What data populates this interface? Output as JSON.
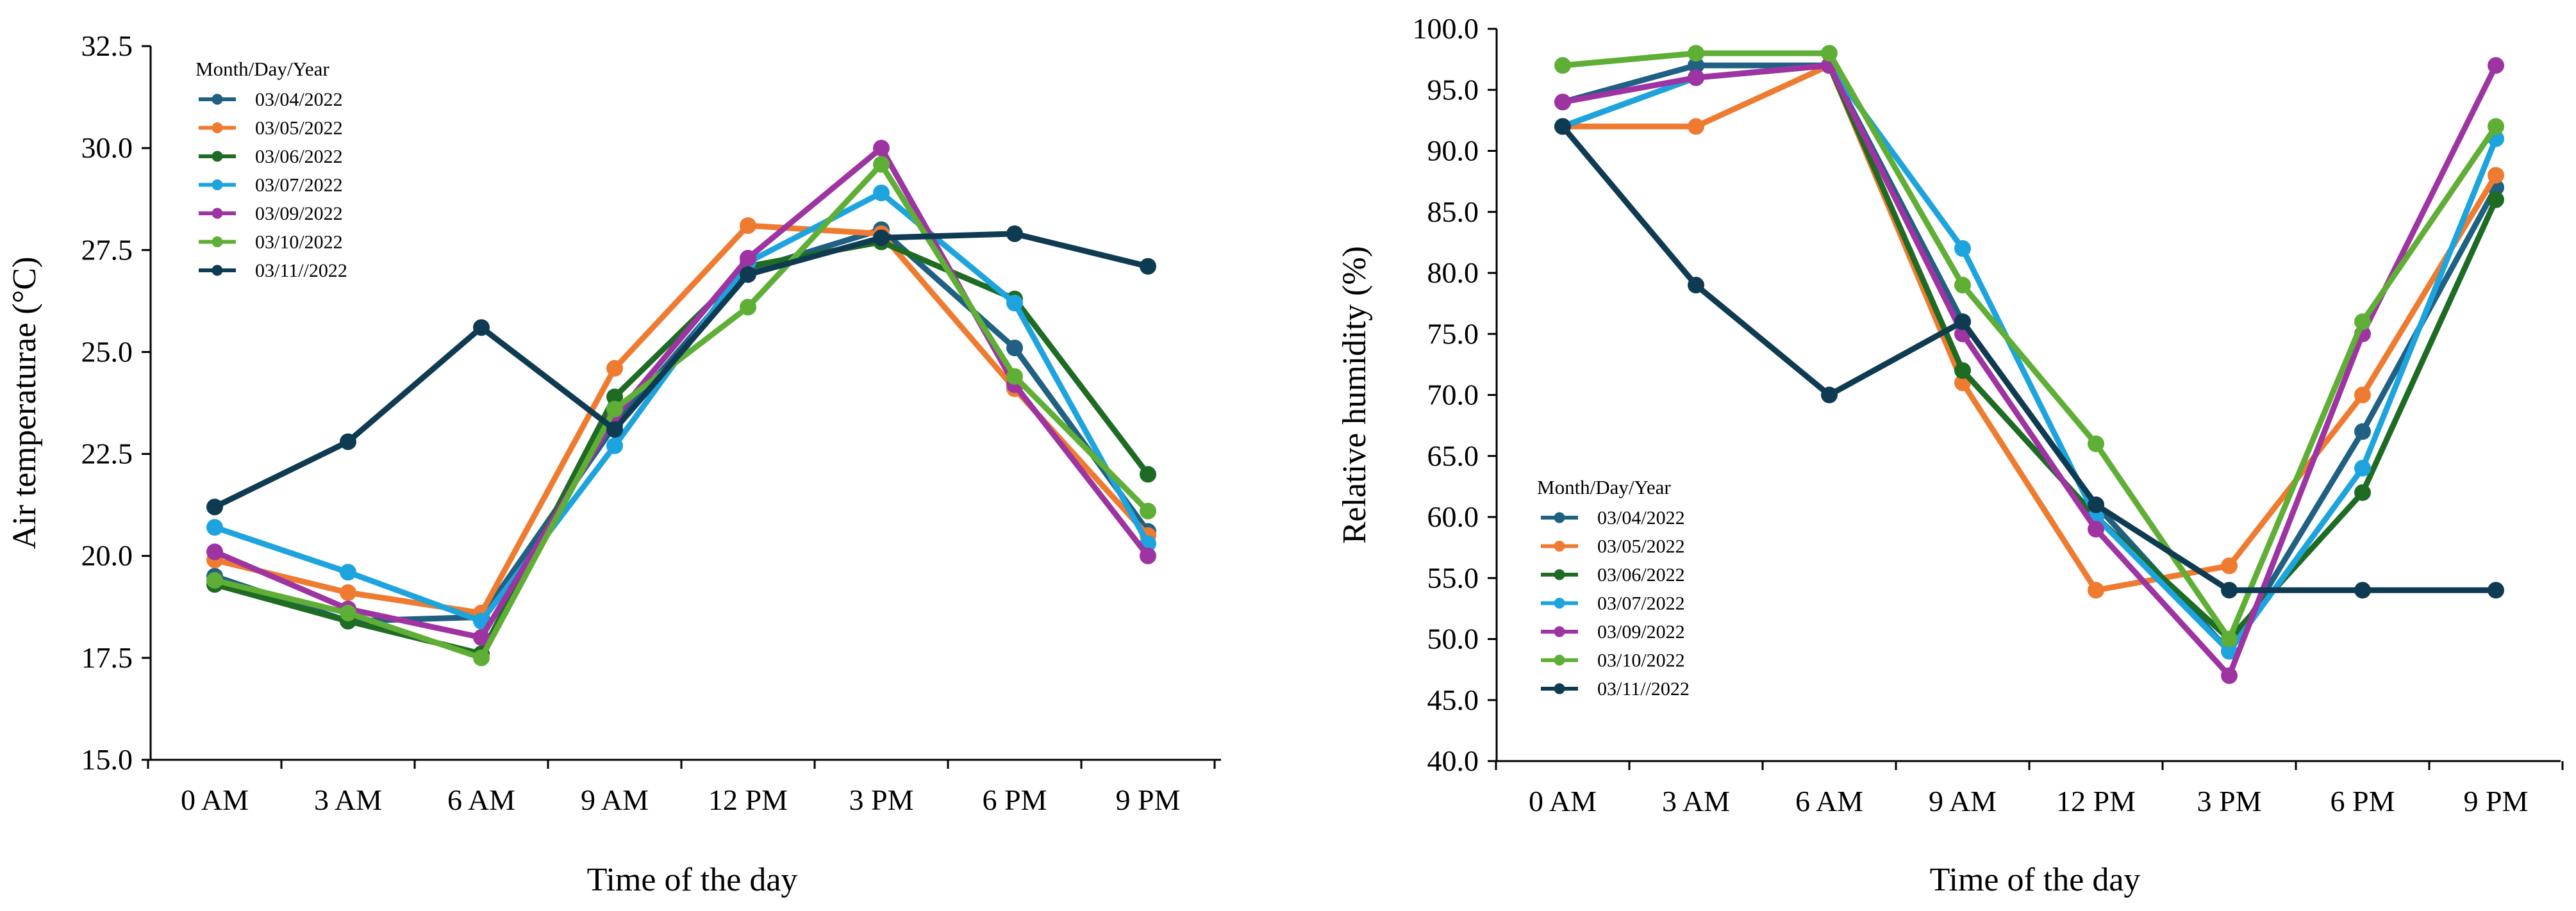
{
  "chart_data": [
    {
      "type": "line",
      "title": "",
      "xlabel": "Time of the day",
      "ylabel": "Air temperaturae (°C)",
      "categories": [
        "0 AM",
        "3 AM",
        "6 AM",
        "9 AM",
        "12 PM",
        "3 PM",
        "6 PM",
        "9 PM"
      ],
      "ylim": [
        15.0,
        32.5
      ],
      "yticks": [
        "15.0",
        "17.5",
        "20.0",
        "22.5",
        "25.0",
        "27.5",
        "30.0",
        "32.5"
      ],
      "grid": false,
      "legend": {
        "title": "Month/Day/Year",
        "position": "top-left",
        "labels": [
          " 03/04/2022",
          "03/05/2022",
          "03/06/2022",
          " 03/07/2022",
          "03/09/2022",
          "03/10/2022",
          "03/11//2022"
        ]
      },
      "series": [
        {
          "name": "03/04/2022",
          "color": "#1f6083",
          "values": [
            19.5,
            18.4,
            18.5,
            23.2,
            27.0,
            28.0,
            25.1,
            20.6
          ]
        },
        {
          "name": "03/05/2022",
          "color": "#ee7b30",
          "values": [
            19.9,
            19.1,
            18.6,
            24.6,
            28.1,
            27.9,
            24.1,
            20.5
          ]
        },
        {
          "name": "03/06/2022",
          "color": "#1e6b24",
          "values": [
            19.3,
            18.4,
            17.6,
            23.9,
            27.1,
            27.7,
            26.3,
            22.0
          ]
        },
        {
          "name": "03/07/2022",
          "color": "#1da4de",
          "values": [
            20.7,
            19.6,
            18.4,
            22.7,
            27.2,
            28.9,
            26.2,
            20.3
          ]
        },
        {
          "name": "03/09/2022",
          "color": "#9e34a2",
          "values": [
            20.1,
            18.7,
            18.0,
            23.4,
            27.3,
            30.0,
            24.2,
            20.0
          ]
        },
        {
          "name": "03/10/2022",
          "color": "#5fae35",
          "values": [
            19.4,
            18.6,
            17.5,
            23.6,
            26.1,
            29.6,
            24.4,
            21.1
          ]
        },
        {
          "name": "03/11//2022",
          "color": "#0f3b52",
          "values": [
            21.2,
            22.8,
            25.6,
            23.1,
            26.9,
            27.8,
            27.9,
            27.1
          ]
        }
      ]
    },
    {
      "type": "line",
      "title": "",
      "xlabel": "Time of the day",
      "ylabel": "Relative humidity (%)",
      "categories": [
        "0 AM",
        "3 AM",
        "6 AM",
        "9 AM",
        "12 PM",
        "3 PM",
        "6 PM",
        "9 PM"
      ],
      "ylim": [
        40.0,
        100.0
      ],
      "yticks": [
        "40.0",
        "45.0",
        "50.0",
        "55.0",
        "60.0",
        "65.0",
        "70.0",
        "75.0",
        "80.0",
        "85.0",
        "90.0",
        "95.0",
        "100.0"
      ],
      "grid": false,
      "legend": {
        "title": "Month/Day/Year",
        "position": "bottom-left",
        "labels": [
          " 03/04/2022",
          "03/05/2022",
          "03/06/2022",
          " 03/07/2022",
          "03/09/2022",
          "03/10/2022",
          "03/11//2022"
        ]
      },
      "series": [
        {
          "name": "03/04/2022",
          "color": "#1f6083",
          "values": [
            94,
            97,
            97,
            76,
            61,
            49,
            67,
            87
          ]
        },
        {
          "name": "03/05/2022",
          "color": "#ee7b30",
          "values": [
            92,
            92,
            97,
            71,
            54,
            56,
            70,
            88
          ]
        },
        {
          "name": "03/06/2022",
          "color": "#1e6b24",
          "values": [
            92,
            96,
            97,
            72,
            60,
            50,
            62,
            86
          ]
        },
        {
          "name": "03/07/2022",
          "color": "#1da4de",
          "values": [
            92,
            96,
            97,
            82,
            60,
            49,
            64,
            91
          ]
        },
        {
          "name": "03/09/2022",
          "color": "#9e34a2",
          "values": [
            94,
            96,
            97,
            75,
            59,
            47,
            75,
            97
          ]
        },
        {
          "name": "03/10/2022",
          "color": "#5fae35",
          "values": [
            97,
            98,
            98,
            79,
            66,
            50,
            76,
            92
          ]
        },
        {
          "name": "03/11//2022",
          "color": "#0f3b52",
          "values": [
            92,
            79,
            70,
            76,
            61,
            54,
            54,
            54
          ]
        }
      ]
    }
  ]
}
